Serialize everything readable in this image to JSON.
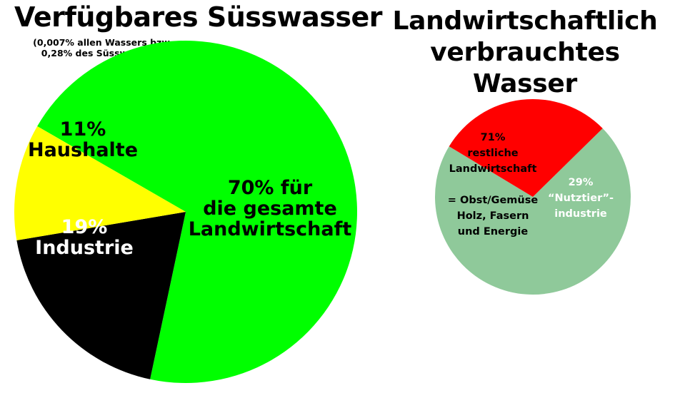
{
  "chart_data": [
    {
      "type": "pie",
      "title": "Verfügbares Süsswasser",
      "subtitle": [
        "(0,007% allen Wassers bzw.",
        "0,28% des Süsswassers)"
      ],
      "slices": [
        {
          "name": "die gesamte Landwirtschaft",
          "value": 70,
          "color": "#00ff00",
          "label_lines": [
            "70% für",
            "die gesamte",
            "Landwirtschaft"
          ],
          "label_color": "#000000"
        },
        {
          "name": "Industrie",
          "value": 19,
          "color": "#000000",
          "label_lines": [
            "19%",
            "Industrie"
          ],
          "label_color": "#ffffff"
        },
        {
          "name": "Haushalte",
          "value": 11,
          "color": "#ffff00",
          "label_lines": [
            "11%",
            "Haushalte"
          ],
          "label_color": "#000000"
        }
      ]
    },
    {
      "type": "pie",
      "title": "Landwirtschaftlich verbrauchtes Wasser",
      "slices": [
        {
          "name": "restliche Landwirtschaft",
          "value": 71,
          "color": "#8fc99a",
          "label_lines": [
            "71%",
            "restliche",
            "Landwirtschaft",
            "",
            "= Obst/Gemüse",
            "Holz, Fasern",
            "und Energie"
          ],
          "label_color": "#000000"
        },
        {
          "name": "“Nutztier”-industrie",
          "value": 29,
          "color": "#ff0000",
          "label_lines": [
            "29%",
            "“Nutztier”-",
            "industrie"
          ],
          "label_color": "#ffffff"
        }
      ]
    }
  ]
}
